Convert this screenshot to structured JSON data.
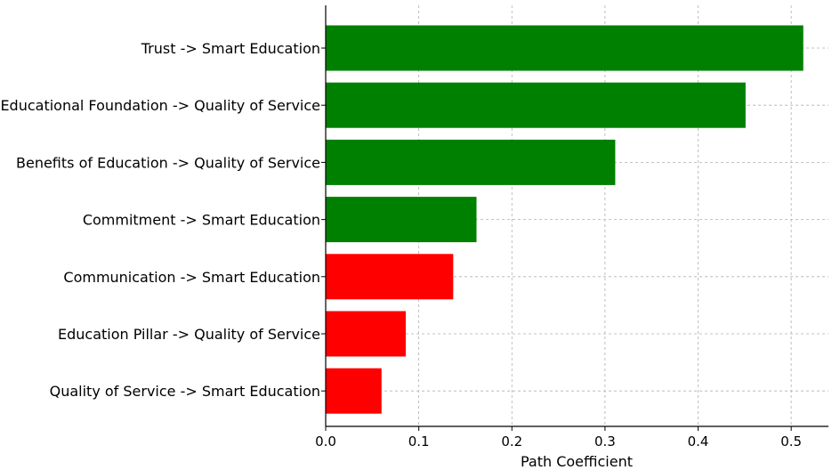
{
  "chart_data": {
    "type": "bar",
    "orientation": "horizontal",
    "xlabel": "Path Coefficient",
    "ylabel": "",
    "title": "",
    "xlim": [
      0,
      0.54
    ],
    "xticks": [
      0.0,
      0.1,
      0.2,
      0.3,
      0.4,
      0.5
    ],
    "xtick_labels": [
      "0.0",
      "0.1",
      "0.2",
      "0.3",
      "0.4",
      "0.5"
    ],
    "grid": true,
    "categories": [
      "Trust -> Smart Education",
      "Educational Foundation -> Quality of Service",
      "Benefits of Education -> Quality of Service",
      "Commitment -> Smart Education",
      "Communication -> Smart Education",
      "Education Pillar -> Quality of Service",
      "Quality of Service -> Smart Education"
    ],
    "values": [
      0.513,
      0.451,
      0.311,
      0.162,
      0.137,
      0.086,
      0.06
    ],
    "bar_colors": [
      "#008000",
      "#008000",
      "#008000",
      "#008000",
      "#ff0000",
      "#ff0000",
      "#ff0000"
    ]
  }
}
